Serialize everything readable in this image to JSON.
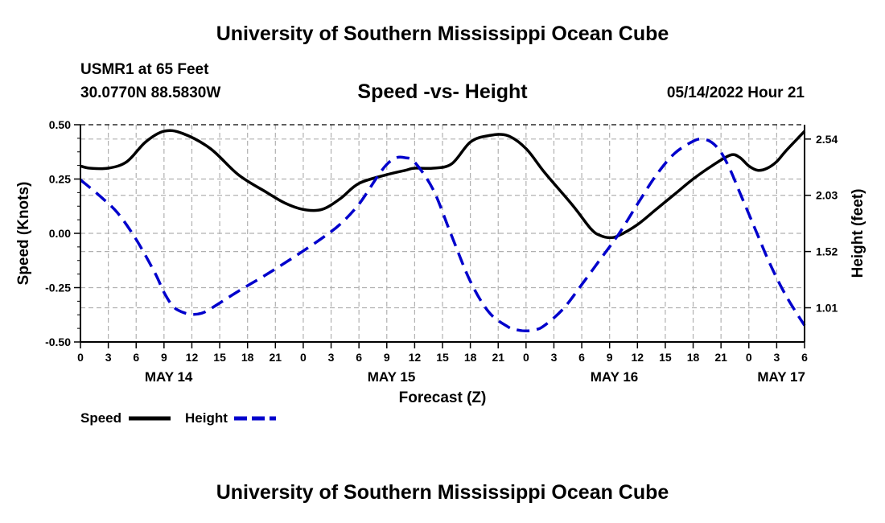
{
  "header": {
    "title": "University of Southern Mississippi Ocean Cube",
    "station": "USMR1 at 65 Feet",
    "coords": "30.0770N  88.5830W",
    "subtitle": "Speed -vs- Height",
    "datetime": "05/14/2022 Hour 21"
  },
  "footer": {
    "title": "University of Southern Mississippi Ocean Cube"
  },
  "legend": {
    "speed_label": "Speed",
    "height_label": "Height"
  },
  "chart_data": {
    "type": "line",
    "title": "Speed -vs- Height",
    "xlabel": "Forecast (Z)",
    "ylabel": "Speed (Knots)",
    "y2label": "Height (feet)",
    "x_range_hours": [
      0,
      78
    ],
    "ylim": [
      -0.5,
      0.5
    ],
    "y2lim": [
      0.7,
      2.67
    ],
    "yticks": [
      "0.50",
      "0.25",
      "0.00",
      "-0.25",
      "-0.50"
    ],
    "yticks_values": [
      0.5,
      0.25,
      0.0,
      -0.25,
      -0.5
    ],
    "y2ticks": [
      "2.54",
      "2.03",
      "1.52",
      "1.01"
    ],
    "y2ticks_values": [
      2.54,
      2.03,
      1.52,
      1.01
    ],
    "xticks": [
      "0",
      "3",
      "6",
      "9",
      "12",
      "15",
      "18",
      "21",
      "0",
      "3",
      "6",
      "9",
      "12",
      "15",
      "18",
      "21",
      "0",
      "3",
      "6",
      "9",
      "12",
      "15",
      "18",
      "21",
      "0",
      "3",
      "6"
    ],
    "day_labels": [
      {
        "label": "MAY 14",
        "hour": 9.5
      },
      {
        "label": "MAY 15",
        "hour": 33.5
      },
      {
        "label": "MAY 16",
        "hour": 57.5
      },
      {
        "label": "MAY 17",
        "hour": 75.5
      }
    ],
    "grid": true,
    "series": [
      {
        "name": "Speed",
        "axis": "left",
        "color": "#000000",
        "dashed": false,
        "hours": [
          0,
          1,
          3,
          5,
          7,
          9,
          11,
          14,
          17,
          20,
          22,
          24,
          26,
          28,
          30,
          33,
          35,
          36,
          38,
          40,
          42,
          44,
          46,
          48,
          50,
          53,
          55,
          56,
          57,
          58,
          60,
          62,
          64,
          66,
          68,
          70,
          71,
          72,
          73,
          74,
          75,
          76,
          78
        ],
        "values": [
          0.31,
          0.3,
          0.3,
          0.33,
          0.42,
          0.47,
          0.46,
          0.39,
          0.27,
          0.19,
          0.14,
          0.11,
          0.11,
          0.16,
          0.23,
          0.27,
          0.29,
          0.3,
          0.3,
          0.32,
          0.42,
          0.45,
          0.45,
          0.39,
          0.28,
          0.13,
          0.02,
          -0.01,
          -0.02,
          -0.01,
          0.04,
          0.11,
          0.18,
          0.25,
          0.31,
          0.36,
          0.35,
          0.31,
          0.29,
          0.3,
          0.33,
          0.38,
          0.47
        ]
      },
      {
        "name": "Height",
        "axis": "right",
        "color": "#0000cc",
        "dashed": true,
        "hours": [
          0,
          2,
          4,
          6,
          8,
          9,
          10,
          11,
          12,
          13,
          14,
          17,
          20,
          23,
          26,
          28,
          30,
          32,
          33,
          34,
          35,
          36,
          38,
          40,
          42,
          44,
          46,
          47,
          48,
          49,
          50,
          52,
          54,
          56,
          58,
          60,
          62,
          64,
          66,
          67,
          68,
          69,
          70,
          71,
          72,
          73,
          74,
          75,
          76,
          77,
          78
        ],
        "values": [
          2.17,
          2.03,
          1.87,
          1.63,
          1.33,
          1.15,
          1.02,
          0.97,
          0.95,
          0.96,
          1.0,
          1.16,
          1.31,
          1.47,
          1.64,
          1.77,
          1.95,
          2.2,
          2.31,
          2.37,
          2.37,
          2.33,
          2.08,
          1.66,
          1.25,
          0.97,
          0.84,
          0.81,
          0.8,
          0.81,
          0.85,
          1.0,
          1.22,
          1.45,
          1.68,
          1.95,
          2.21,
          2.41,
          2.52,
          2.54,
          2.51,
          2.42,
          2.26,
          2.06,
          1.86,
          1.66,
          1.46,
          1.28,
          1.12,
          0.98,
          0.85
        ]
      }
    ]
  }
}
